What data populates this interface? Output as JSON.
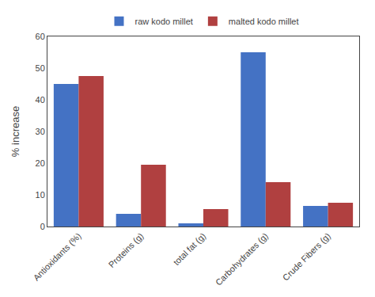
{
  "chart_data": {
    "type": "bar",
    "categories": [
      "Antioxidants (%)",
      "Proteins (g)",
      "total fat (g)",
      "Carbohydrates (g)",
      "Crude Fibers (g)"
    ],
    "series": [
      {
        "name": "raw kodo millet",
        "color": "#4472C4",
        "values": [
          45,
          4,
          1,
          55,
          6.5
        ]
      },
      {
        "name": "malted kodo millet",
        "color": "#B04040",
        "values": [
          47.5,
          19.5,
          5.5,
          14,
          7.5
        ]
      }
    ],
    "ylabel": "% increase",
    "ylim": [
      0,
      60
    ],
    "yticks": [
      0,
      10,
      20,
      30,
      40,
      50,
      60
    ],
    "grid": false,
    "legend": "upper center"
  }
}
